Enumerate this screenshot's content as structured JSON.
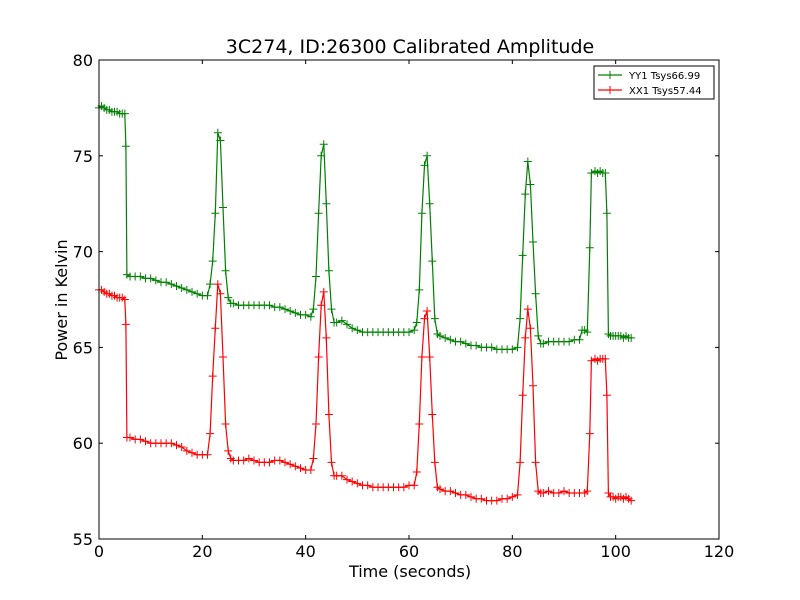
{
  "chart_data": {
    "type": "line",
    "title": "3C274, ID:26300 Calibrated Amplitude",
    "xlabel": "Time (seconds)",
    "ylabel": "Power in Kelvin",
    "xlim": [
      0,
      120
    ],
    "ylim": [
      55,
      80
    ],
    "xticks": [
      "0",
      "20",
      "40",
      "60",
      "80",
      "100",
      "120"
    ],
    "yticks": [
      "55",
      "60",
      "65",
      "70",
      "75",
      "80"
    ],
    "grid": false,
    "legend_position": "top-right",
    "marker": "plus",
    "series": [
      {
        "name": "YY1 Tsys66.99",
        "color": "#008000",
        "points": [
          [
            0,
            77.5
          ],
          [
            0.5,
            77.6
          ],
          [
            1,
            77.5
          ],
          [
            1.5,
            77.4
          ],
          [
            2,
            77.4
          ],
          [
            2.5,
            77.3
          ],
          [
            3,
            77.3
          ],
          [
            3.5,
            77.3
          ],
          [
            4,
            77.2
          ],
          [
            4.5,
            77.2
          ],
          [
            5,
            77.2
          ],
          [
            5.2,
            75.5
          ],
          [
            5.4,
            68.8
          ],
          [
            6,
            68.7
          ],
          [
            7,
            68.7
          ],
          [
            8,
            68.7
          ],
          [
            9,
            68.6
          ],
          [
            10,
            68.6
          ],
          [
            11,
            68.5
          ],
          [
            12,
            68.4
          ],
          [
            13,
            68.4
          ],
          [
            14,
            68.3
          ],
          [
            15,
            68.2
          ],
          [
            16,
            68.1
          ],
          [
            17,
            68.0
          ],
          [
            18,
            67.9
          ],
          [
            19,
            67.8
          ],
          [
            20,
            67.7
          ],
          [
            21,
            67.7
          ],
          [
            21.5,
            68.3
          ],
          [
            22,
            69.5
          ],
          [
            22.5,
            72.0
          ],
          [
            23,
            76.2
          ],
          [
            23.5,
            75.8
          ],
          [
            24,
            72.3
          ],
          [
            24.5,
            69.0
          ],
          [
            25,
            67.6
          ],
          [
            25.5,
            67.3
          ],
          [
            26,
            67.3
          ],
          [
            27,
            67.2
          ],
          [
            28,
            67.2
          ],
          [
            29,
            67.2
          ],
          [
            30,
            67.2
          ],
          [
            31,
            67.2
          ],
          [
            32,
            67.2
          ],
          [
            33,
            67.2
          ],
          [
            34,
            67.1
          ],
          [
            35,
            67.1
          ],
          [
            36,
            67.0
          ],
          [
            37,
            66.9
          ],
          [
            38,
            66.8
          ],
          [
            39,
            66.7
          ],
          [
            40,
            66.7
          ],
          [
            41,
            66.6
          ],
          [
            41.5,
            67.0
          ],
          [
            42,
            68.7
          ],
          [
            42.5,
            72.0
          ],
          [
            43,
            75.0
          ],
          [
            43.5,
            75.6
          ],
          [
            44,
            72.5
          ],
          [
            44.5,
            69.0
          ],
          [
            45,
            67.0
          ],
          [
            45.5,
            66.3
          ],
          [
            46,
            66.3
          ],
          [
            47,
            66.4
          ],
          [
            48,
            66.2
          ],
          [
            49,
            66.0
          ],
          [
            50,
            65.9
          ],
          [
            51,
            65.8
          ],
          [
            52,
            65.8
          ],
          [
            53,
            65.8
          ],
          [
            54,
            65.8
          ],
          [
            55,
            65.8
          ],
          [
            56,
            65.8
          ],
          [
            57,
            65.8
          ],
          [
            58,
            65.8
          ],
          [
            59,
            65.8
          ],
          [
            60,
            65.8
          ],
          [
            61,
            65.9
          ],
          [
            61.5,
            66.3
          ],
          [
            62,
            68.0
          ],
          [
            62.5,
            72.0
          ],
          [
            63,
            74.5
          ],
          [
            63.5,
            75.0
          ],
          [
            64,
            72.5
          ],
          [
            64.5,
            69.5
          ],
          [
            65,
            66.5
          ],
          [
            65.5,
            65.7
          ],
          [
            66,
            65.6
          ],
          [
            67,
            65.5
          ],
          [
            68,
            65.4
          ],
          [
            69,
            65.3
          ],
          [
            70,
            65.3
          ],
          [
            71,
            65.2
          ],
          [
            72,
            65.1
          ],
          [
            73,
            65.1
          ],
          [
            74,
            65.0
          ],
          [
            75,
            65.0
          ],
          [
            76,
            65.0
          ],
          [
            77,
            64.9
          ],
          [
            78,
            64.9
          ],
          [
            79,
            64.9
          ],
          [
            80,
            64.9
          ],
          [
            81,
            65.0
          ],
          [
            81.5,
            66.5
          ],
          [
            82,
            69.8
          ],
          [
            82.5,
            73.0
          ],
          [
            83,
            74.7
          ],
          [
            83.5,
            73.5
          ],
          [
            84,
            70.5
          ],
          [
            84.5,
            67.8
          ],
          [
            85,
            65.6
          ],
          [
            85.5,
            65.2
          ],
          [
            86,
            65.2
          ],
          [
            87,
            65.3
          ],
          [
            88,
            65.3
          ],
          [
            89,
            65.3
          ],
          [
            90,
            65.3
          ],
          [
            91,
            65.3
          ],
          [
            92,
            65.4
          ],
          [
            93,
            65.4
          ],
          [
            93.5,
            65.9
          ],
          [
            94,
            65.9
          ],
          [
            94.5,
            65.8
          ],
          [
            95,
            70.2
          ],
          [
            95.3,
            74.1
          ],
          [
            96,
            74.2
          ],
          [
            96.5,
            74.1
          ],
          [
            97,
            74.2
          ],
          [
            97.5,
            74.1
          ],
          [
            98,
            74.1
          ],
          [
            98.3,
            72.0
          ],
          [
            98.6,
            65.7
          ],
          [
            99,
            65.6
          ],
          [
            99.5,
            65.6
          ],
          [
            100,
            65.6
          ],
          [
            100.5,
            65.6
          ],
          [
            101,
            65.6
          ],
          [
            101.5,
            65.5
          ],
          [
            102,
            65.6
          ],
          [
            102.5,
            65.5
          ],
          [
            103,
            65.5
          ]
        ]
      },
      {
        "name": "XX1 Tsys57.44",
        "color": "#ff0000",
        "points": [
          [
            0,
            68.0
          ],
          [
            0.5,
            68.0
          ],
          [
            1,
            67.9
          ],
          [
            1.5,
            67.8
          ],
          [
            2,
            67.8
          ],
          [
            2.5,
            67.7
          ],
          [
            3,
            67.7
          ],
          [
            3.5,
            67.6
          ],
          [
            4,
            67.6
          ],
          [
            4.5,
            67.6
          ],
          [
            5,
            67.5
          ],
          [
            5.2,
            66.2
          ],
          [
            5.4,
            60.3
          ],
          [
            6,
            60.3
          ],
          [
            7,
            60.2
          ],
          [
            8,
            60.2
          ],
          [
            9,
            60.1
          ],
          [
            10,
            60.0
          ],
          [
            11,
            60.0
          ],
          [
            12,
            60.0
          ],
          [
            13,
            60.0
          ],
          [
            14,
            60.0
          ],
          [
            15,
            59.9
          ],
          [
            16,
            59.8
          ],
          [
            17,
            59.6
          ],
          [
            18,
            59.5
          ],
          [
            19,
            59.4
          ],
          [
            20,
            59.4
          ],
          [
            21,
            59.4
          ],
          [
            21.5,
            60.5
          ],
          [
            22,
            63.5
          ],
          [
            22.5,
            66.0
          ],
          [
            23,
            68.3
          ],
          [
            23.5,
            67.8
          ],
          [
            24,
            64.5
          ],
          [
            24.5,
            61.0
          ],
          [
            25,
            59.6
          ],
          [
            25.5,
            59.2
          ],
          [
            26,
            59.1
          ],
          [
            27,
            59.1
          ],
          [
            28,
            59.1
          ],
          [
            29,
            59.2
          ],
          [
            30,
            59.1
          ],
          [
            31,
            59.0
          ],
          [
            32,
            59.0
          ],
          [
            33,
            59.0
          ],
          [
            34,
            59.1
          ],
          [
            35,
            59.1
          ],
          [
            36,
            59.0
          ],
          [
            37,
            58.9
          ],
          [
            38,
            58.8
          ],
          [
            39,
            58.7
          ],
          [
            40,
            58.6
          ],
          [
            41,
            58.6
          ],
          [
            41.5,
            59.2
          ],
          [
            42,
            61.0
          ],
          [
            42.5,
            64.5
          ],
          [
            43,
            67.2
          ],
          [
            43.5,
            67.9
          ],
          [
            44,
            65.5
          ],
          [
            44.5,
            61.5
          ],
          [
            45,
            59.0
          ],
          [
            45.5,
            58.3
          ],
          [
            46,
            58.3
          ],
          [
            47,
            58.3
          ],
          [
            48,
            58.1
          ],
          [
            49,
            58.0
          ],
          [
            50,
            57.9
          ],
          [
            51,
            57.8
          ],
          [
            52,
            57.8
          ],
          [
            53,
            57.7
          ],
          [
            54,
            57.7
          ],
          [
            55,
            57.7
          ],
          [
            56,
            57.7
          ],
          [
            57,
            57.7
          ],
          [
            58,
            57.7
          ],
          [
            59,
            57.7
          ],
          [
            60,
            57.8
          ],
          [
            61,
            57.8
          ],
          [
            61.5,
            58.5
          ],
          [
            62,
            61.0
          ],
          [
            62.5,
            64.5
          ],
          [
            63,
            66.5
          ],
          [
            63.5,
            66.9
          ],
          [
            64,
            64.5
          ],
          [
            64.5,
            61.5
          ],
          [
            65,
            59.0
          ],
          [
            65.5,
            57.7
          ],
          [
            66,
            57.6
          ],
          [
            67,
            57.5
          ],
          [
            68,
            57.5
          ],
          [
            69,
            57.4
          ],
          [
            70,
            57.3
          ],
          [
            71,
            57.3
          ],
          [
            72,
            57.2
          ],
          [
            73,
            57.1
          ],
          [
            74,
            57.1
          ],
          [
            75,
            57.0
          ],
          [
            76,
            57.0
          ],
          [
            77,
            57.0
          ],
          [
            78,
            57.1
          ],
          [
            79,
            57.1
          ],
          [
            80,
            57.2
          ],
          [
            81,
            57.3
          ],
          [
            81.5,
            59.0
          ],
          [
            82,
            62.5
          ],
          [
            82.5,
            65.5
          ],
          [
            83,
            67.0
          ],
          [
            83.5,
            66.0
          ],
          [
            84,
            63.0
          ],
          [
            84.5,
            59.0
          ],
          [
            85,
            57.5
          ],
          [
            85.5,
            57.4
          ],
          [
            86,
            57.4
          ],
          [
            87,
            57.5
          ],
          [
            88,
            57.4
          ],
          [
            89,
            57.4
          ],
          [
            90,
            57.5
          ],
          [
            91,
            57.4
          ],
          [
            92,
            57.4
          ],
          [
            93,
            57.4
          ],
          [
            94,
            57.4
          ],
          [
            94.5,
            57.5
          ],
          [
            95,
            60.5
          ],
          [
            95.3,
            64.3
          ],
          [
            96,
            64.4
          ],
          [
            96.5,
            64.3
          ],
          [
            97,
            64.4
          ],
          [
            97.5,
            64.4
          ],
          [
            98,
            64.4
          ],
          [
            98.3,
            62.5
          ],
          [
            98.6,
            57.4
          ],
          [
            99,
            57.2
          ],
          [
            99.5,
            57.2
          ],
          [
            100,
            57.1
          ],
          [
            100.5,
            57.2
          ],
          [
            101,
            57.2
          ],
          [
            101.5,
            57.1
          ],
          [
            102,
            57.2
          ],
          [
            102.5,
            57.1
          ],
          [
            103,
            57.0
          ]
        ]
      }
    ]
  }
}
